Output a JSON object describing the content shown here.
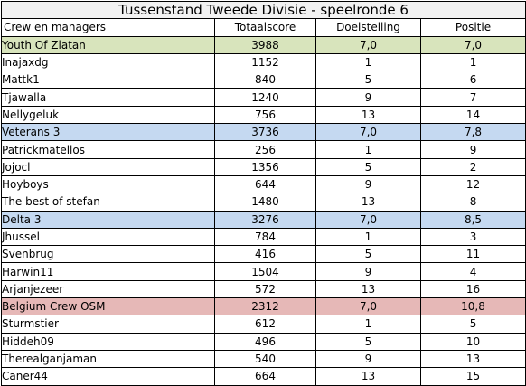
{
  "title": "Tussenstand Tweede Divisie - speelronde 6",
  "headers": [
    "Crew en managers",
    "Totaalscore",
    "Doelstelling",
    "Positie"
  ],
  "crews": [
    {
      "name": "Youth Of Zlatan",
      "totaal": "3988",
      "doel": "7,0",
      "positie": "7,0",
      "color": "#d8e4bc",
      "members": [
        {
          "name": "Inajaxdg",
          "totaal": "1152",
          "doel": "1",
          "positie": "1"
        },
        {
          "name": "Mattk1",
          "totaal": "840",
          "doel": "5",
          "positie": "6"
        },
        {
          "name": "Tjawalla",
          "totaal": "1240",
          "doel": "9",
          "positie": "7"
        },
        {
          "name": "Nellygeluk",
          "totaal": "756",
          "doel": "13",
          "positie": "14"
        }
      ]
    },
    {
      "name": "Veterans 3",
      "totaal": "3736",
      "doel": "7,0",
      "positie": "7,8",
      "color": "#c5d9f1",
      "members": [
        {
          "name": "Patrickmatellos",
          "totaal": "256",
          "doel": "1",
          "positie": "9"
        },
        {
          "name": "Jojocl",
          "totaal": "1356",
          "doel": "5",
          "positie": "2"
        },
        {
          "name": "Hoyboys",
          "totaal": "644",
          "doel": "9",
          "positie": "12"
        },
        {
          "name": "The best of stefan",
          "totaal": "1480",
          "doel": "13",
          "positie": "8"
        }
      ]
    },
    {
      "name": "Delta 3",
      "totaal": "3276",
      "doel": "7,0",
      "positie": "8,5",
      "color": "#c5d9f1",
      "members": [
        {
          "name": "Jhussel",
          "totaal": "784",
          "doel": "1",
          "positie": "3"
        },
        {
          "name": "Svenbrug",
          "totaal": "416",
          "doel": "5",
          "positie": "11"
        },
        {
          "name": "Harwin11",
          "totaal": "1504",
          "doel": "9",
          "positie": "4"
        },
        {
          "name": "Arjanjezeer",
          "totaal": "572",
          "doel": "13",
          "positie": "16"
        }
      ]
    },
    {
      "name": "Belgium Crew OSM",
      "totaal": "2312",
      "doel": "7,0",
      "positie": "10,8",
      "color": "#e6b8b7",
      "members": [
        {
          "name": "Sturmstier",
          "totaal": "612",
          "doel": "1",
          "positie": "5"
        },
        {
          "name": "Hiddeh09",
          "totaal": "496",
          "doel": "5",
          "positie": "10"
        },
        {
          "name": "Therealganjaman",
          "totaal": "540",
          "doel": "9",
          "positie": "13"
        },
        {
          "name": "Caner44",
          "totaal": "664",
          "doel": "13",
          "positie": "15"
        }
      ]
    }
  ]
}
